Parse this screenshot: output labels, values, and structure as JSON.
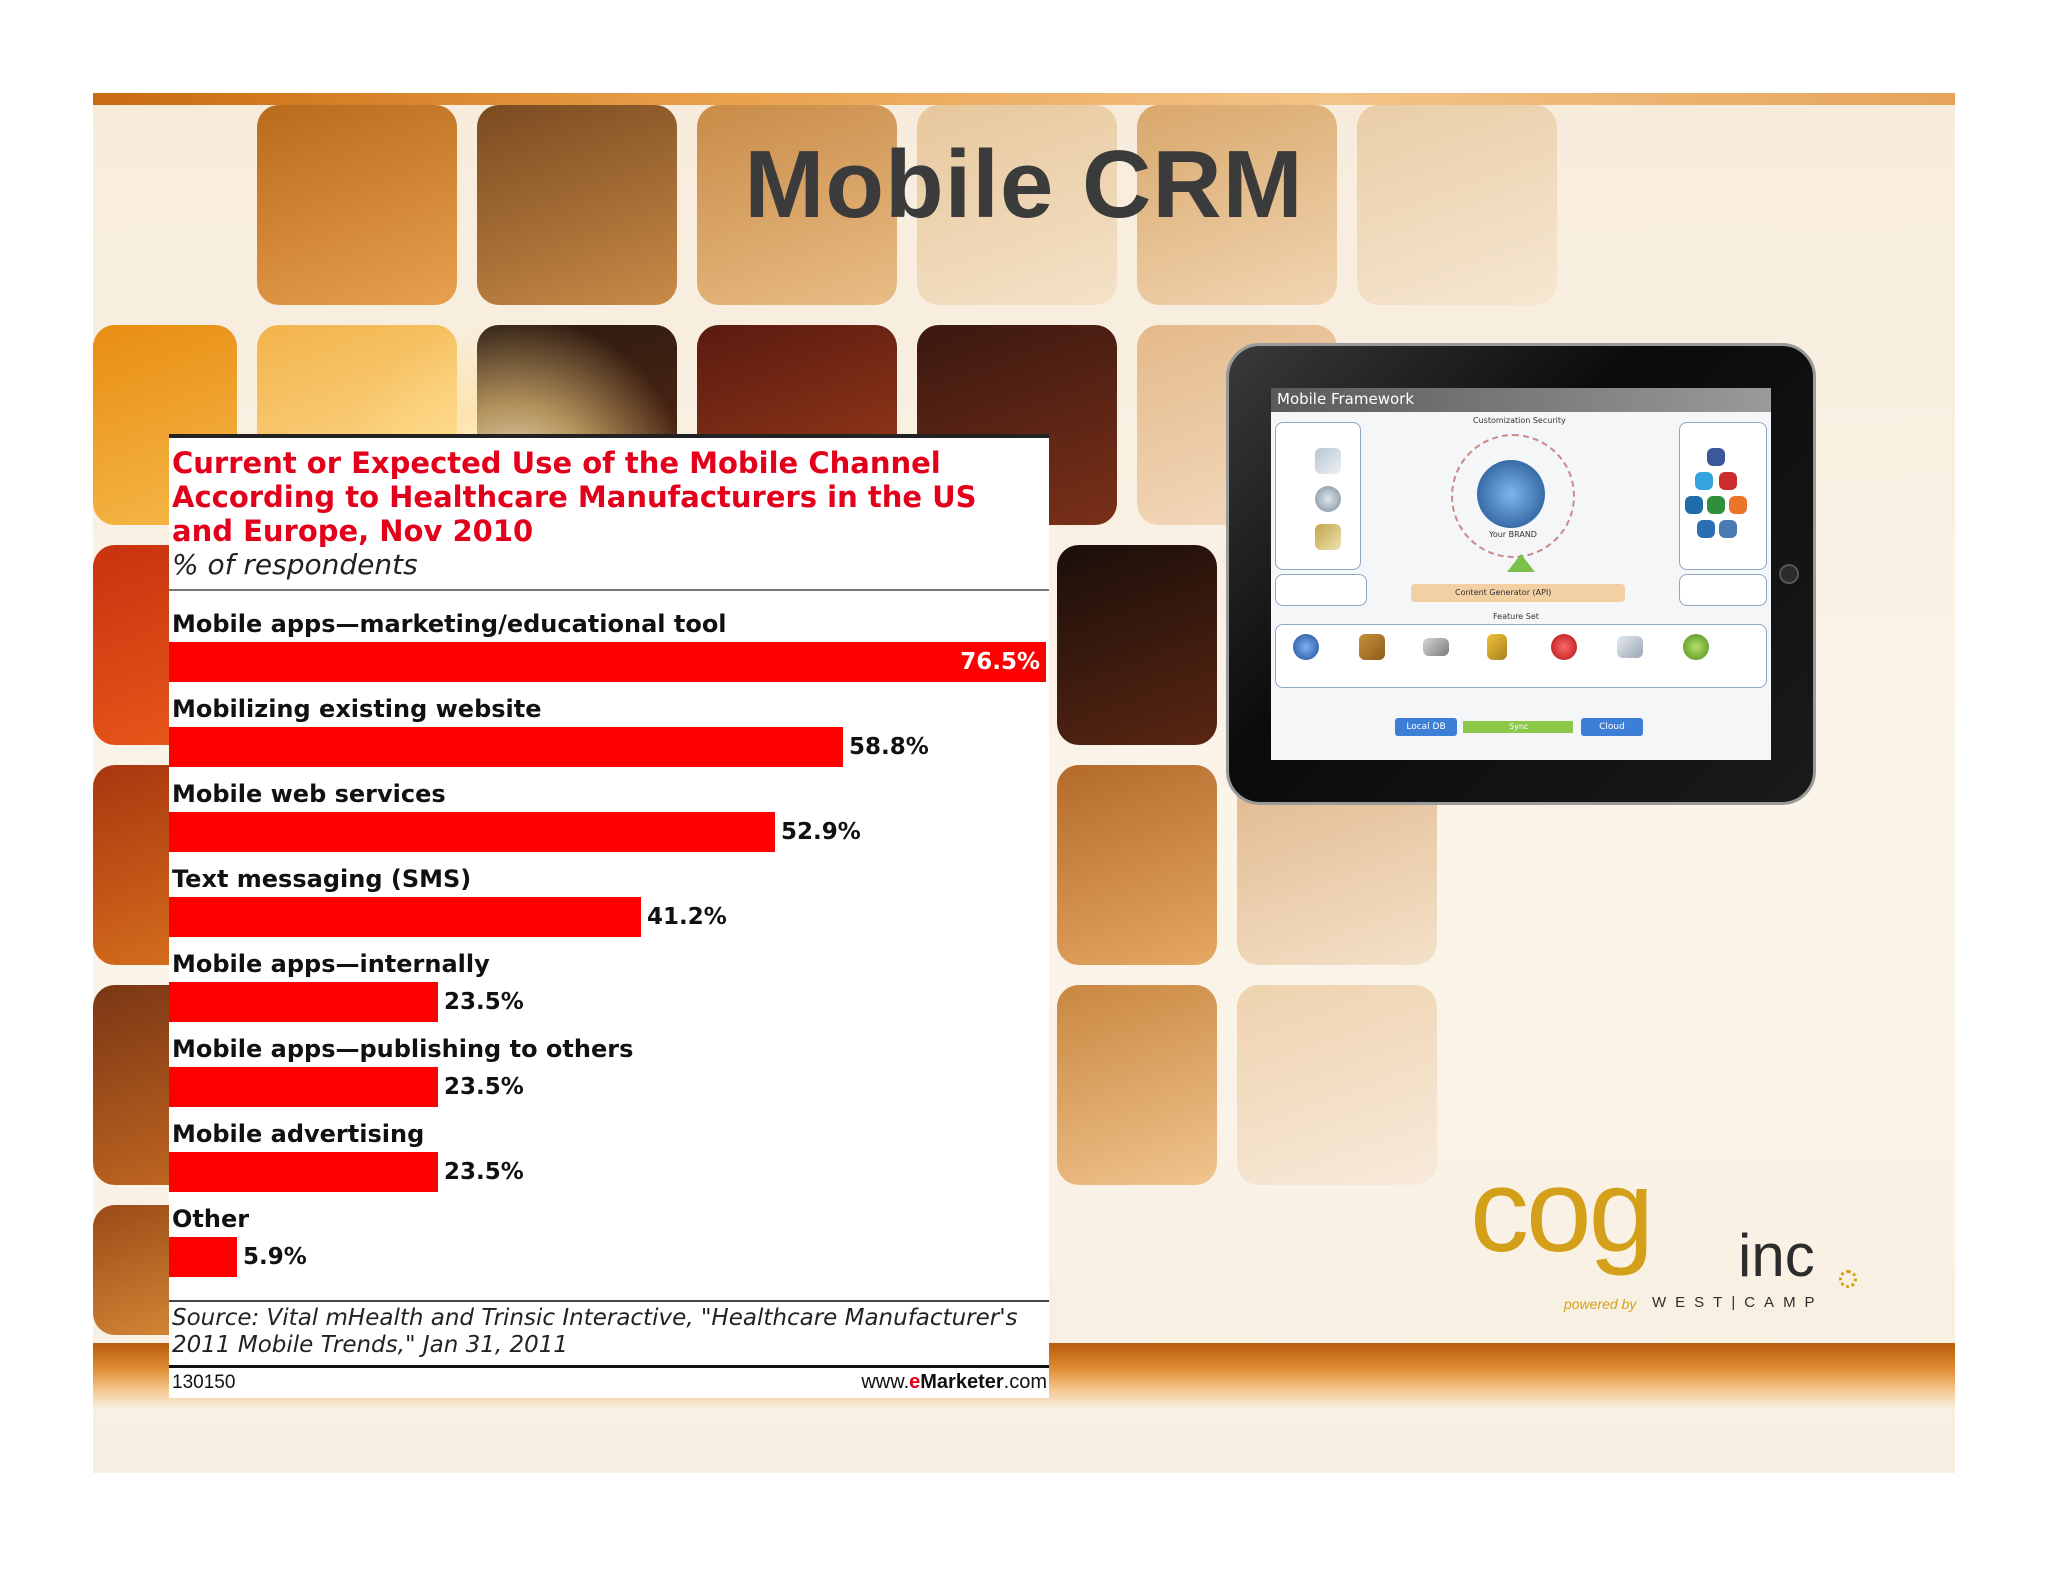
{
  "slide": {
    "title": "Mobile CRM"
  },
  "chart_data": {
    "type": "bar",
    "orientation": "horizontal",
    "title": "Current or Expected Use of the Mobile Channel According to Healthcare Manufacturers in the US and Europe, Nov 2010",
    "subtitle": "% of respondents",
    "categories": [
      "Mobile apps—marketing/educational tool",
      "Mobilizing existing website",
      "Mobile web services",
      "Text messaging (SMS)",
      "Mobile apps—internally",
      "Mobile apps—publishing to others",
      "Mobile advertising",
      "Other"
    ],
    "values": [
      76.5,
      58.8,
      52.9,
      41.2,
      23.5,
      23.5,
      23.5,
      5.9
    ],
    "value_labels": [
      "76.5%",
      "58.8%",
      "52.9%",
      "41.2%",
      "23.5%",
      "23.5%",
      "23.5%",
      "5.9%"
    ],
    "xlim": [
      0,
      76.5
    ],
    "bar_color": "#ff0000",
    "title_color": "#e3001b",
    "source": "Source: Vital mHealth and Trinsic Interactive, \"Healthcare Manufacturer's 2011 Mobile Trends,\" Jan 31, 2011",
    "chart_id": "130150",
    "credit": {
      "prefix": "www.",
      "brand": "e",
      "brand2": "Marketer",
      "suffix": ".com"
    }
  },
  "tablet": {
    "screen_title": "Mobile Framework",
    "center_label": "Your BRAND",
    "top_label": "Customization Security",
    "api_label": "Content Generator (API)",
    "feature_label": "Feature Set",
    "buttons": [
      "Local DB",
      "Sync",
      "Cloud"
    ]
  },
  "logo": {
    "name": "cog",
    "suffix": "inc",
    "powered": "powered by",
    "partner": "WEST|CAMP",
    "color": "#d4a019"
  }
}
